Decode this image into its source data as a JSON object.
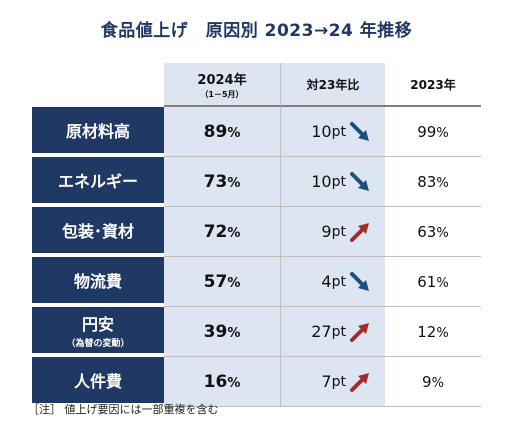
{
  "title": "食品値上げ　原因別  2023→24 年推移",
  "headers": {
    "col2024_main": "2024年",
    "col2024_sub": "（1－5月）",
    "col_vs": "対23年比",
    "col2023": "2023年"
  },
  "rows": [
    {
      "label": "原材料高",
      "sublabel": "",
      "v2024": "89",
      "diff_num": "10",
      "diff_unit": "pt",
      "direction": "down",
      "v2023": "99"
    },
    {
      "label": "エネルギー",
      "sublabel": "",
      "v2024": "73",
      "diff_num": "10",
      "diff_unit": "pt",
      "direction": "down",
      "v2023": "83"
    },
    {
      "label": "包装･資材",
      "sublabel": "",
      "v2024": "72",
      "diff_num": "9",
      "diff_unit": "pt",
      "direction": "up",
      "v2023": "63"
    },
    {
      "label": "物流費",
      "sublabel": "",
      "v2024": "57",
      "diff_num": "4",
      "diff_unit": "pt",
      "direction": "down",
      "v2023": "61"
    },
    {
      "label": "円安",
      "sublabel": "（為替の変動）",
      "v2024": "39",
      "diff_num": "27",
      "diff_unit": "pt",
      "direction": "up",
      "v2023": "12"
    },
    {
      "label": "人件費",
      "sublabel": "",
      "v2024": "16",
      "diff_num": "7",
      "diff_unit": "pt",
      "direction": "up",
      "v2023": "9"
    }
  ],
  "percent_sign": "%",
  "note": "［注］ 値上げ要因には一部重複を含む",
  "colors": {
    "navy": "#1f3864",
    "light_blue": "#dce5f1",
    "arrow_down": "#1f4e79",
    "arrow_up": "#a52a2a"
  }
}
